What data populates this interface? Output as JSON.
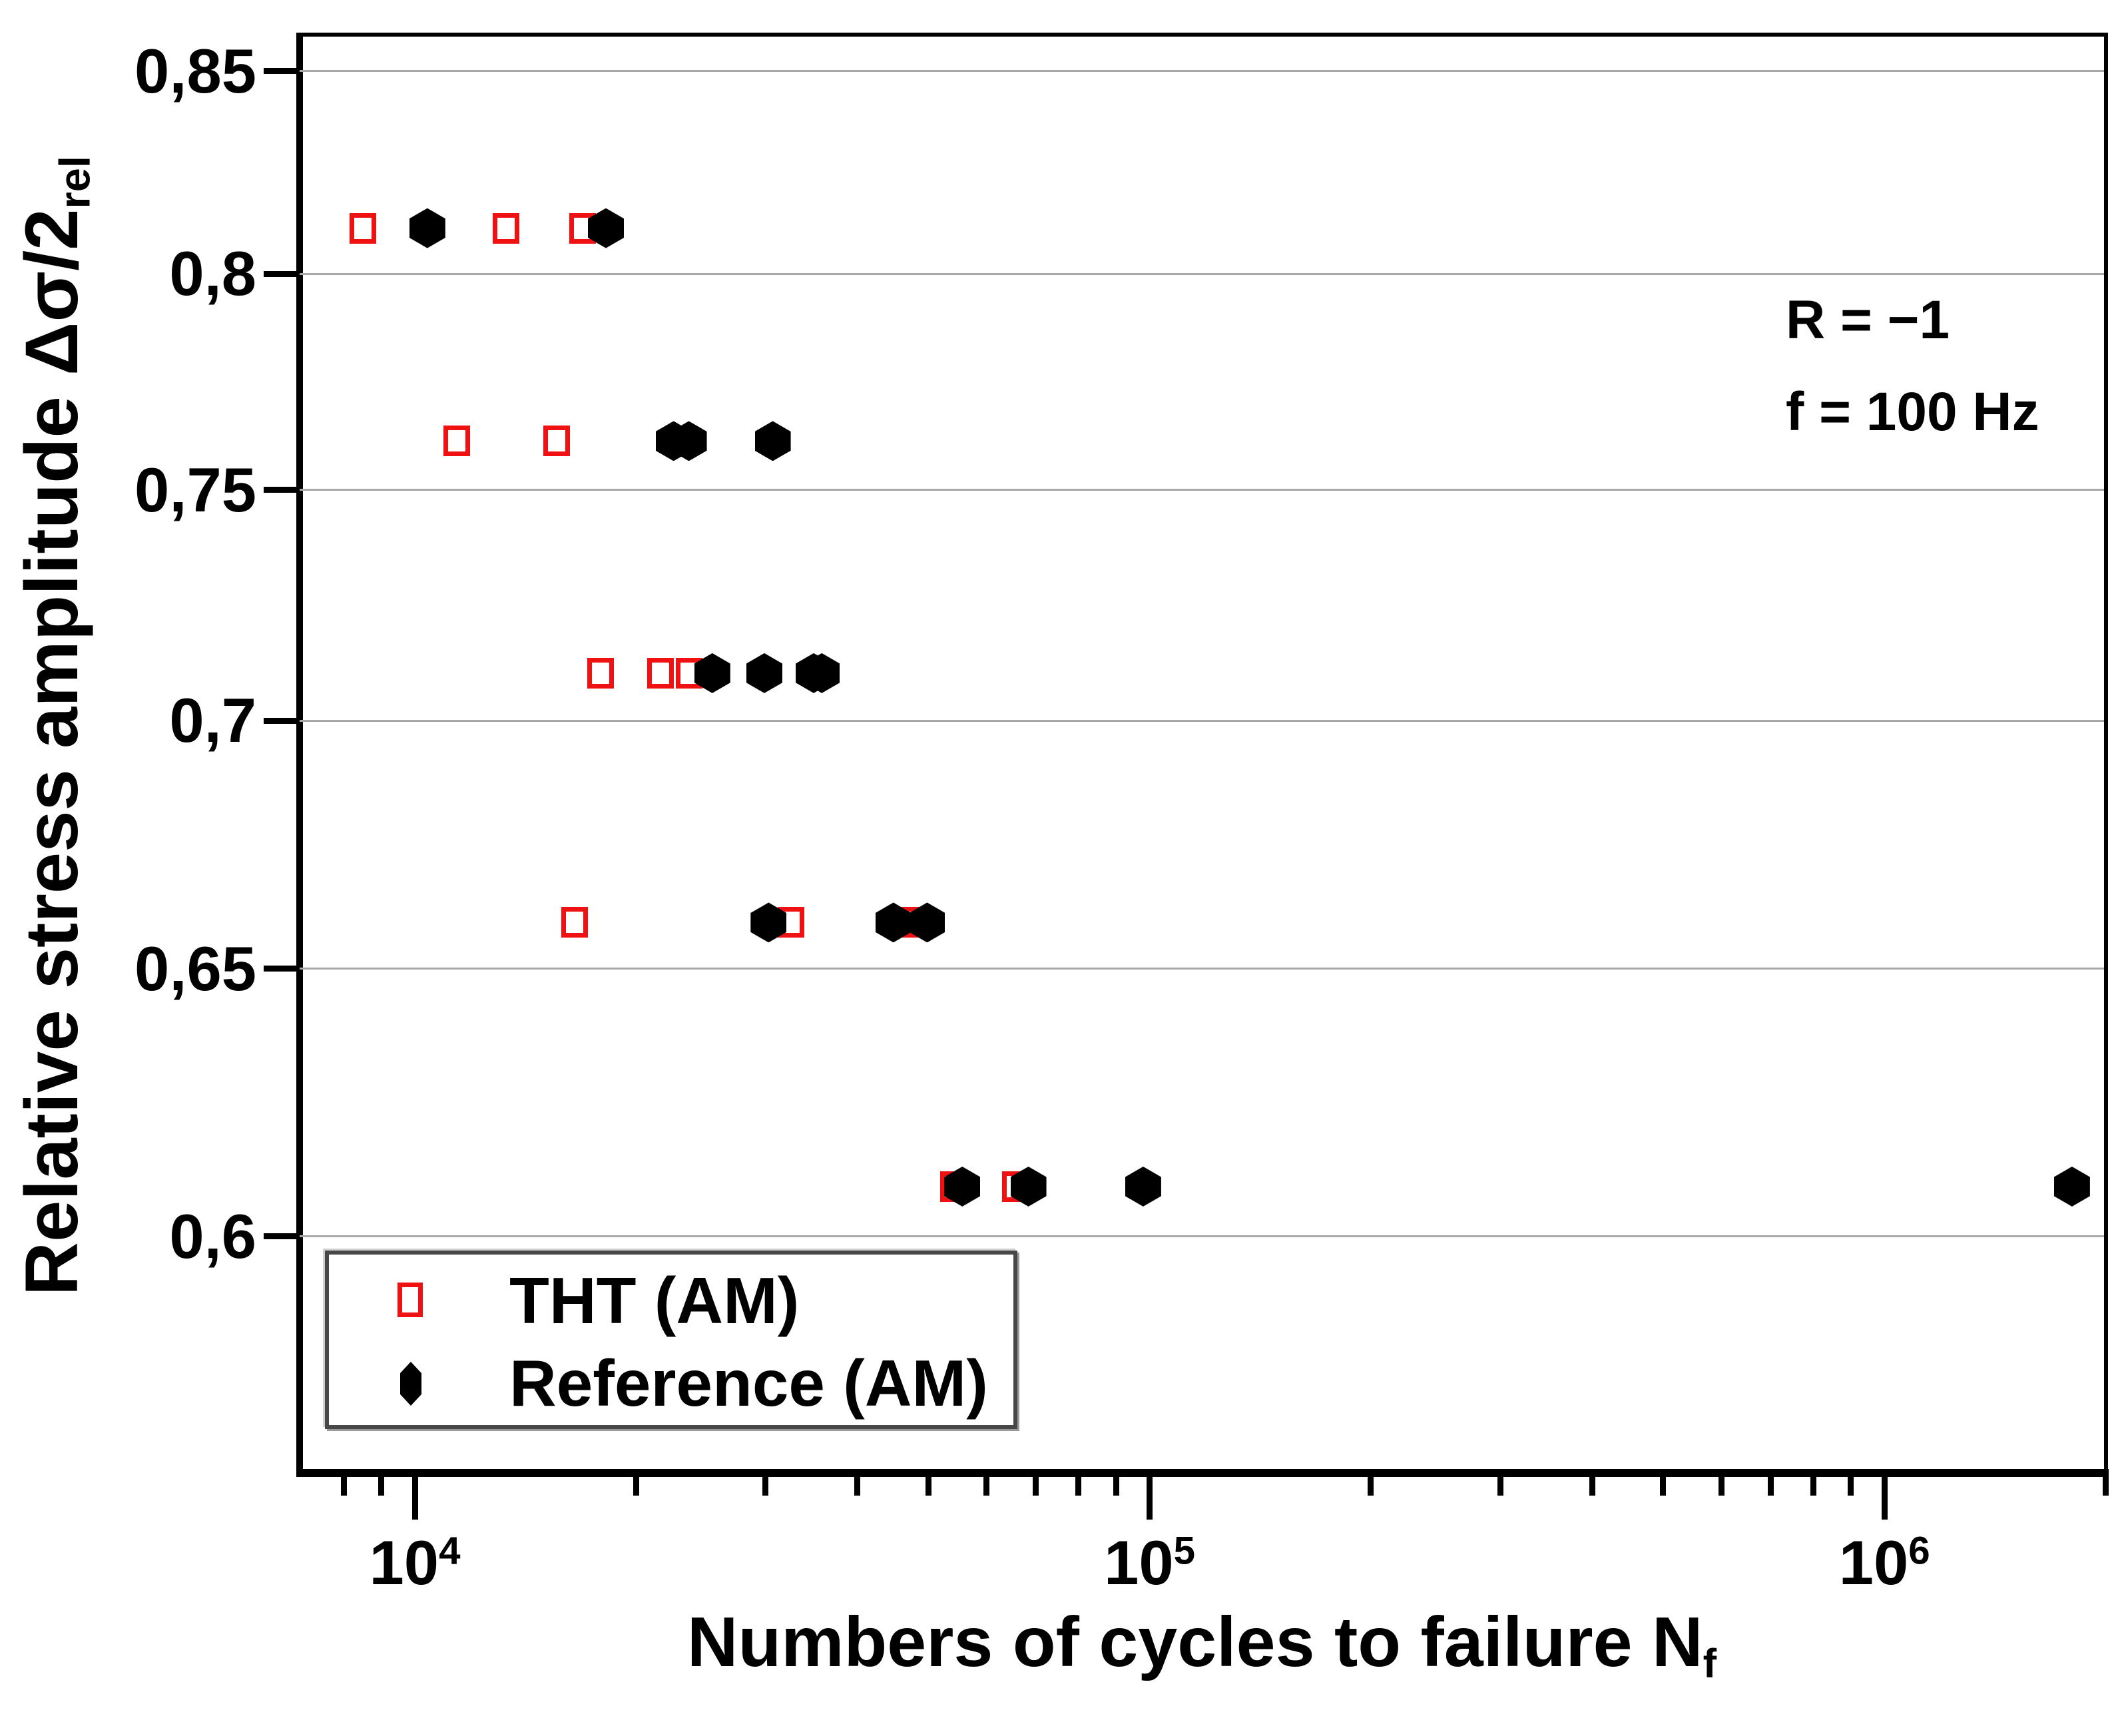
{
  "figure": {
    "background": "#ffffff",
    "grid_color": "#a9a9a9",
    "axis_color": "#000000"
  },
  "legend": {
    "entries": [
      {
        "label": "THT (AM)",
        "marker": "open-square",
        "color": "#f01212"
      },
      {
        "label": "Reference (AM)",
        "marker": "filled-hexagon",
        "color": "#000000"
      }
    ]
  },
  "chart_data": {
    "type": "scatter",
    "title": "",
    "xlabel": "Numbers of cycles to failure N",
    "xlabel_subscript": "f",
    "ylabel": "Relative stress amplitude Δσ/2",
    "ylabel_subscript": "rel",
    "x_scale": "log",
    "y_scale": "log",
    "xlim": [
      6970,
      1990000
    ],
    "ylim": [
      0.56,
      0.859
    ],
    "grid": "horizontal",
    "legend_position": "lower-left",
    "x_major_ticks": [
      {
        "value": 10000,
        "base": "10",
        "exponent": "4"
      },
      {
        "value": 100000,
        "base": "10",
        "exponent": "5"
      },
      {
        "value": 1000000,
        "base": "10",
        "exponent": "6"
      }
    ],
    "x_minor_ticks": [
      8000,
      9000,
      20000,
      30000,
      40000,
      50000,
      60000,
      70000,
      80000,
      90000,
      200000,
      300000,
      400000,
      500000,
      600000,
      700000,
      800000,
      900000,
      2000000
    ],
    "y_major_ticks": [
      {
        "value": 0.85,
        "label": "0,85"
      },
      {
        "value": 0.8,
        "label": "0,8"
      },
      {
        "value": 0.75,
        "label": "0,75"
      },
      {
        "value": 0.7,
        "label": "0,7"
      },
      {
        "value": 0.65,
        "label": "0,65"
      },
      {
        "value": 0.6,
        "label": "0,6"
      }
    ],
    "annotations": [
      {
        "text": "R = −1"
      },
      {
        "text": "f = 100 Hz"
      }
    ],
    "series": [
      {
        "name": "THT (AM)",
        "marker": "open-square",
        "color": "#f01212",
        "points": [
          [
            8500,
            0.811
          ],
          [
            13300,
            0.811
          ],
          [
            16900,
            0.811
          ],
          [
            11400,
            0.761
          ],
          [
            15600,
            0.761
          ],
          [
            17900,
            0.71
          ],
          [
            21600,
            0.71
          ],
          [
            23600,
            0.71
          ],
          [
            16500,
            0.659
          ],
          [
            32500,
            0.659
          ],
          [
            47100,
            0.659
          ],
          [
            54100,
            0.609
          ],
          [
            65600,
            0.609
          ]
        ]
      },
      {
        "name": "Reference (AM)",
        "marker": "filled-hexagon",
        "color": "#000000",
        "points": [
          [
            10400,
            0.811
          ],
          [
            18200,
            0.811
          ],
          [
            22500,
            0.761
          ],
          [
            23600,
            0.761
          ],
          [
            30700,
            0.761
          ],
          [
            25400,
            0.71
          ],
          [
            29900,
            0.71
          ],
          [
            34900,
            0.71
          ],
          [
            35800,
            0.71
          ],
          [
            30300,
            0.659
          ],
          [
            44800,
            0.659
          ],
          [
            49800,
            0.659
          ],
          [
            55600,
            0.609
          ],
          [
            68400,
            0.609
          ],
          [
            98000,
            0.609
          ],
          [
            1800000,
            0.609
          ]
        ]
      }
    ]
  }
}
